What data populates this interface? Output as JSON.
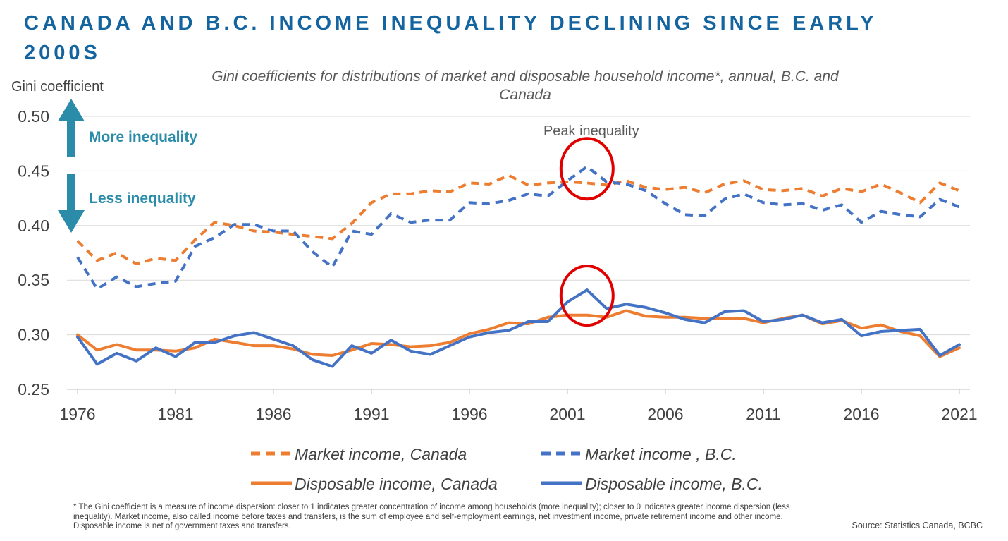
{
  "title": "CANADA AND B.C. INCOME INEQUALITY DECLINING SINCE EARLY 2000S",
  "subtitle": "Gini coefficients for distributions of market and disposable household income*, annual, B.C. and Canada",
  "footnote": "* The Gini coefficient is a measure of income dispersion: closer to 1 indicates greater concentration of income among households (more inequality); closer to 0 indicates greater income dispersion (less inequality). Market income, also called income before taxes and transfers, is the sum of employee and self-employment earnings, net investment income, private retirement income and other income. Disposable income is net of government taxes and transfers.",
  "source": "Source: Statistics Canada, BCBC",
  "colors": {
    "title": "#1464a0",
    "arrow": "#2a8ca8",
    "canada": "#ed7d31",
    "bc": "#4472c4",
    "highlight": "#e00000"
  },
  "chart_data": {
    "type": "line",
    "ylabel": "Gini coefficient",
    "ylim": [
      0.25,
      0.5
    ],
    "yticks": [
      "0.50",
      "0.45",
      "0.40",
      "0.35",
      "0.30",
      "0.25"
    ],
    "xticks": [
      "1976",
      "1981",
      "1986",
      "1991",
      "1996",
      "2001",
      "2006",
      "2011",
      "2016",
      "2021"
    ],
    "grid": "horizontal",
    "legend_position": "bottom",
    "x": [
      1976,
      1977,
      1978,
      1979,
      1980,
      1981,
      1982,
      1983,
      1984,
      1985,
      1986,
      1987,
      1988,
      1989,
      1990,
      1991,
      1992,
      1993,
      1994,
      1995,
      1996,
      1997,
      1998,
      1999,
      2000,
      2001,
      2002,
      2003,
      2004,
      2005,
      2006,
      2007,
      2008,
      2009,
      2010,
      2011,
      2012,
      2013,
      2014,
      2015,
      2016,
      2017,
      2018,
      2019,
      2020,
      2021
    ],
    "series": [
      {
        "name": "Market income, Canada",
        "style": "dashed",
        "color": "#ed7d31",
        "values": [
          0.386,
          0.368,
          0.375,
          0.365,
          0.37,
          0.368,
          0.387,
          0.403,
          0.4,
          0.395,
          0.394,
          0.392,
          0.39,
          0.388,
          0.402,
          0.421,
          0.429,
          0.429,
          0.432,
          0.431,
          0.439,
          0.438,
          0.446,
          0.437,
          0.439,
          0.44,
          0.439,
          0.437,
          0.441,
          0.435,
          0.433,
          0.435,
          0.43,
          0.438,
          0.441,
          0.433,
          0.432,
          0.434,
          0.427,
          0.434,
          0.431,
          0.438,
          0.43,
          0.421,
          0.439,
          0.432
        ]
      },
      {
        "name": "Market income , B.C.",
        "style": "dashed",
        "color": "#4472c4",
        "values": [
          0.371,
          0.342,
          0.353,
          0.344,
          0.347,
          0.349,
          0.381,
          0.389,
          0.401,
          0.401,
          0.395,
          0.395,
          0.376,
          0.362,
          0.395,
          0.392,
          0.411,
          0.403,
          0.405,
          0.405,
          0.421,
          0.42,
          0.423,
          0.429,
          0.427,
          0.441,
          0.454,
          0.44,
          0.438,
          0.432,
          0.42,
          0.41,
          0.409,
          0.424,
          0.429,
          0.421,
          0.419,
          0.42,
          0.414,
          0.419,
          0.403,
          0.413,
          0.41,
          0.408,
          0.424,
          0.417
        ]
      },
      {
        "name": "Disposable income, Canada",
        "style": "solid",
        "color": "#ed7d31",
        "values": [
          0.3,
          0.286,
          0.291,
          0.286,
          0.286,
          0.285,
          0.288,
          0.296,
          0.293,
          0.29,
          0.29,
          0.287,
          0.282,
          0.281,
          0.286,
          0.292,
          0.291,
          0.289,
          0.29,
          0.293,
          0.301,
          0.305,
          0.311,
          0.31,
          0.316,
          0.318,
          0.318,
          0.316,
          0.322,
          0.317,
          0.316,
          0.316,
          0.315,
          0.315,
          0.315,
          0.311,
          0.315,
          0.318,
          0.31,
          0.313,
          0.306,
          0.309,
          0.303,
          0.299,
          0.28,
          0.288
        ]
      },
      {
        "name": "Disposable income, B.C.",
        "style": "solid",
        "color": "#4472c4",
        "values": [
          0.298,
          0.273,
          0.283,
          0.276,
          0.288,
          0.28,
          0.293,
          0.293,
          0.299,
          0.302,
          0.296,
          0.29,
          0.277,
          0.271,
          0.29,
          0.283,
          0.295,
          0.285,
          0.282,
          0.29,
          0.298,
          0.302,
          0.304,
          0.312,
          0.312,
          0.33,
          0.341,
          0.324,
          0.328,
          0.325,
          0.32,
          0.314,
          0.311,
          0.321,
          0.322,
          0.312,
          0.314,
          0.318,
          0.311,
          0.314,
          0.299,
          0.303,
          0.304,
          0.305,
          0.281,
          0.291
        ]
      }
    ],
    "annotations": {
      "peak_label": "Peak inequality",
      "peak_year": 2002,
      "more_label": "More inequality",
      "less_label": "Less inequality"
    }
  }
}
